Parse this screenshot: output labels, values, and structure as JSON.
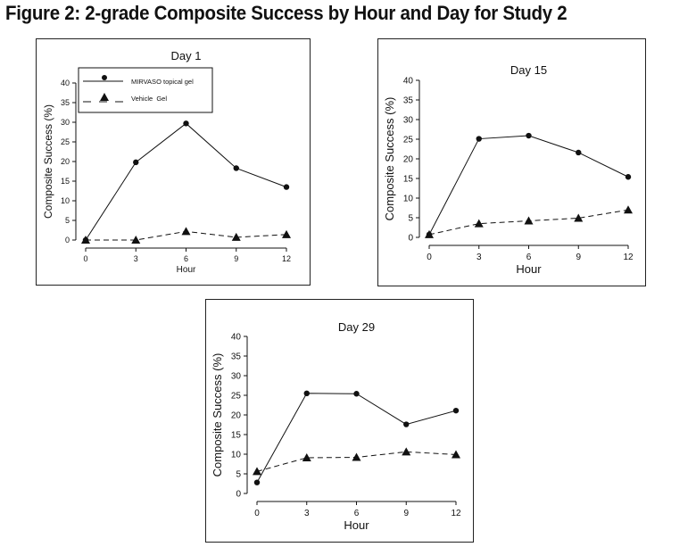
{
  "figure_title": "Figure 2: 2-grade Composite Success by Hour and Day for Study 2",
  "colors": {
    "line": "#111111",
    "background": "#ffffff",
    "frame": "#222222"
  },
  "chart_data": [
    {
      "type": "line",
      "title": "Day 1",
      "xlabel": "Hour",
      "ylabel": "Composite Success (%)",
      "x": [
        0,
        3,
        6,
        9,
        12
      ],
      "xticks": [
        "0",
        "3",
        "6",
        "9",
        "12"
      ],
      "ylim": [
        0,
        40
      ],
      "yticks": [
        "0",
        "5",
        "10",
        "15",
        "20",
        "25",
        "30",
        "35",
        "40"
      ],
      "legend": "top-left",
      "series": [
        {
          "name": "MIRVASO topical gel",
          "marker": "circle",
          "line": "solid",
          "values": [
            0,
            19.8,
            29.7,
            18.3,
            13.5
          ]
        },
        {
          "name": "Vehicle  Gel",
          "marker": "triangle",
          "line": "dashed",
          "values": [
            0,
            0,
            2.2,
            0.7,
            1.4
          ]
        }
      ]
    },
    {
      "type": "line",
      "title": "Day 15",
      "xlabel": "Hour",
      "ylabel": "Composite Success (%)",
      "x": [
        0,
        3,
        6,
        9,
        12
      ],
      "xticks": [
        "0",
        "3",
        "6",
        "9",
        "12"
      ],
      "ylim": [
        0,
        40
      ],
      "yticks": [
        "0",
        "5",
        "10",
        "15",
        "20",
        "25",
        "30",
        "35",
        "40"
      ],
      "series": [
        {
          "marker": "circle",
          "line": "solid",
          "values": [
            0.7,
            25.1,
            25.9,
            21.6,
            15.4
          ]
        },
        {
          "marker": "triangle",
          "line": "dashed",
          "values": [
            0.7,
            3.5,
            4.2,
            4.9,
            7.0
          ]
        }
      ]
    },
    {
      "type": "line",
      "title": "Day 29",
      "xlabel": "Hour",
      "ylabel": "Composite Success (%)",
      "x": [
        0,
        3,
        6,
        9,
        12
      ],
      "xticks": [
        "0",
        "3",
        "6",
        "9",
        "12"
      ],
      "ylim": [
        0,
        40
      ],
      "yticks": [
        "0",
        "5",
        "10",
        "15",
        "20",
        "25",
        "30",
        "35",
        "40"
      ],
      "series": [
        {
          "marker": "circle",
          "line": "solid",
          "values": [
            2.8,
            25.5,
            25.4,
            17.6,
            21.1
          ]
        },
        {
          "marker": "triangle",
          "line": "dashed",
          "values": [
            5.6,
            9.1,
            9.2,
            10.6,
            9.9
          ]
        }
      ]
    }
  ]
}
